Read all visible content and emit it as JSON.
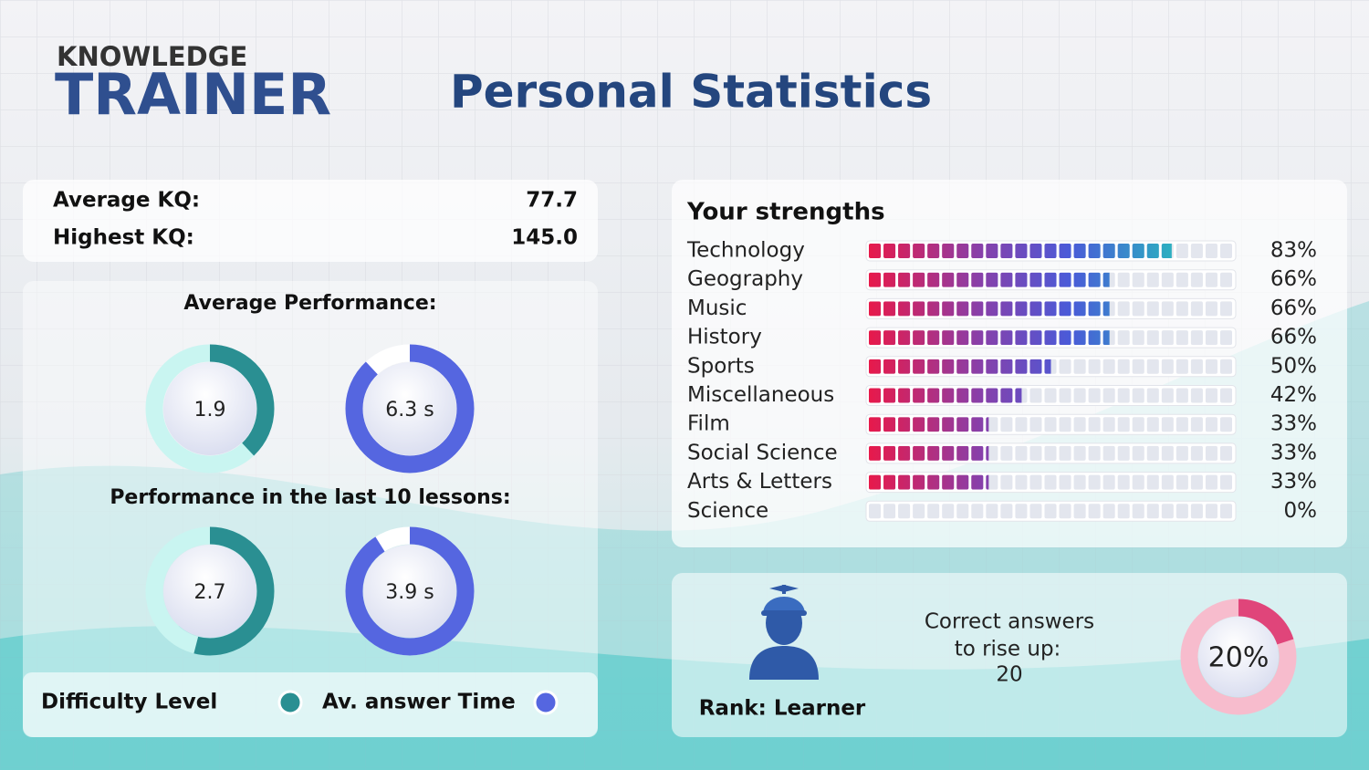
{
  "header": {
    "brand_top": "KNOWLEDGE",
    "brand": "TRAINER",
    "title": "Personal Statistics"
  },
  "kq": {
    "rows": [
      [
        "Average KQ:",
        "77.7"
      ],
      [
        "Highest KQ:",
        "145.0"
      ]
    ]
  },
  "performance": {
    "average_title": "Average Performance:",
    "recent_title": "Performance in the last 10 lessons:",
    "average": [
      {
        "label": "1.9",
        "fill": 38
      },
      {
        "label": "6.3 s",
        "fill": 88
      }
    ],
    "recent": [
      {
        "label": "2.7",
        "fill": 54
      },
      {
        "label": "3.9 s",
        "fill": 91
      }
    ],
    "legend": [
      "Difficulty Level",
      "Av. answer Time"
    ]
  },
  "strengths": {
    "title": "Your strengths",
    "categories": [
      "Technology",
      "Geography",
      "Music",
      "History",
      "Sports",
      "Miscellaneous",
      "Film",
      "Social Science",
      "Arts & Letters",
      "Science"
    ],
    "values": [
      83,
      66,
      66,
      66,
      50,
      42,
      33,
      33,
      33,
      0
    ],
    "value_labels": [
      "83%",
      "66%",
      "66%",
      "66%",
      "50%",
      "42%",
      "33%",
      "33%",
      "33%",
      "0%"
    ]
  },
  "rank": {
    "label": "Rank: Learner",
    "text": [
      "Correct answers",
      "to rise up:",
      "20"
    ],
    "value": 20,
    "value_label": "20%"
  }
}
